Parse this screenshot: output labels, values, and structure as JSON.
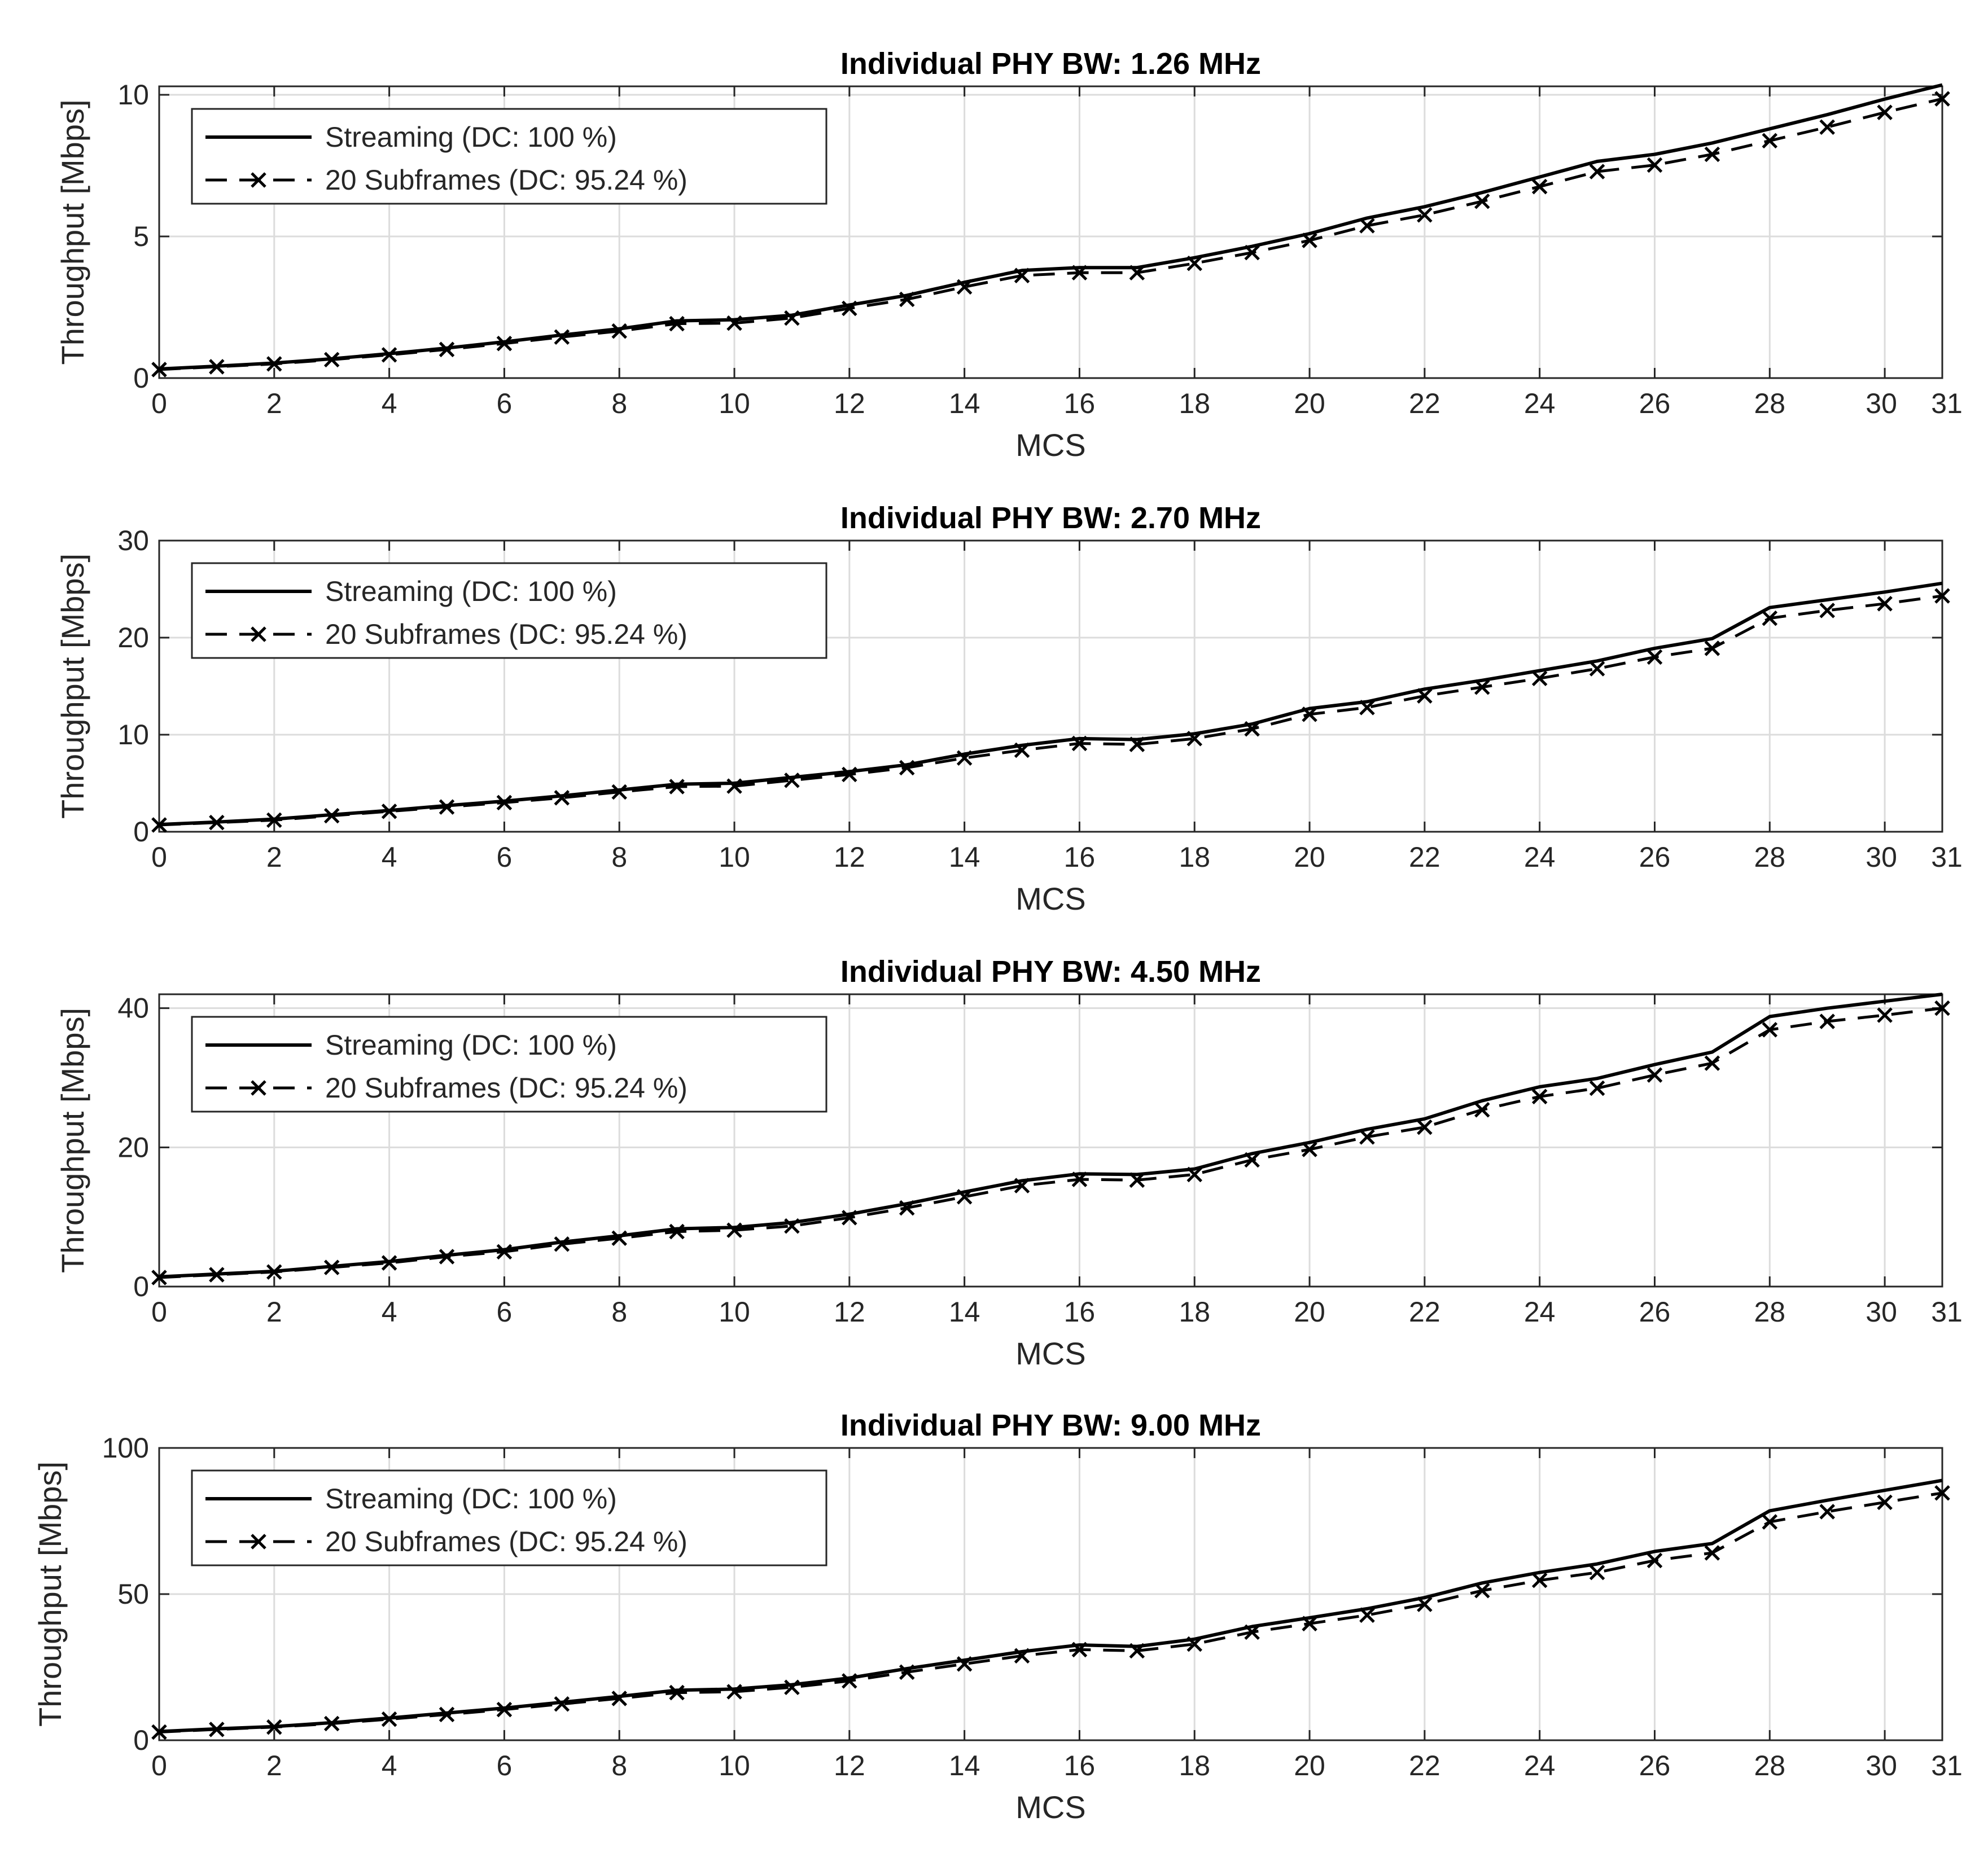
{
  "chart_data": [
    {
      "type": "line",
      "title": "Individual PHY BW: 1.26 MHz",
      "xlabel": "MCS",
      "ylabel": "Throughput [Mbps]",
      "xlim": [
        0,
        31
      ],
      "ylim": [
        0,
        10.3
      ],
      "xticks": [
        0,
        2,
        4,
        6,
        8,
        10,
        12,
        14,
        16,
        18,
        20,
        22,
        24,
        26,
        28,
        30,
        31
      ],
      "yticks": [
        0,
        5,
        10
      ],
      "grid": true,
      "legend_position": "top-left",
      "x": [
        0,
        1,
        2,
        3,
        4,
        5,
        6,
        7,
        8,
        9,
        10,
        11,
        12,
        13,
        14,
        15,
        16,
        17,
        18,
        19,
        20,
        21,
        22,
        23,
        24,
        25,
        26,
        27,
        28,
        29,
        30,
        31
      ],
      "series": [
        {
          "name": "Streaming (DC: 100 %)",
          "style": "solid",
          "values": [
            0.32,
            0.42,
            0.53,
            0.68,
            0.86,
            1.06,
            1.28,
            1.52,
            1.74,
            2.02,
            2.06,
            2.22,
            2.58,
            2.92,
            3.38,
            3.8,
            3.9,
            3.9,
            4.25,
            4.65,
            5.1,
            5.65,
            6.05,
            6.55,
            7.1,
            7.65,
            7.9,
            8.3,
            8.8,
            9.3,
            9.85,
            10.35
          ]
        },
        {
          "name": "20 Subframes (DC: 95.24 %)",
          "style": "dashed-x",
          "values": [
            0.3,
            0.4,
            0.5,
            0.65,
            0.82,
            1.01,
            1.22,
            1.45,
            1.66,
            1.92,
            1.94,
            2.12,
            2.46,
            2.78,
            3.22,
            3.62,
            3.72,
            3.72,
            4.05,
            4.43,
            4.86,
            5.38,
            5.76,
            6.24,
            6.76,
            7.29,
            7.52,
            7.9,
            8.38,
            8.86,
            9.38,
            9.86
          ]
        }
      ]
    },
    {
      "type": "line",
      "title": "Individual PHY BW: 2.70 MHz",
      "xlabel": "MCS",
      "ylabel": "Throughput [Mbps]",
      "xlim": [
        0,
        31
      ],
      "ylim": [
        0,
        30
      ],
      "xticks": [
        0,
        2,
        4,
        6,
        8,
        10,
        12,
        14,
        16,
        18,
        20,
        22,
        24,
        26,
        28,
        30,
        31
      ],
      "yticks": [
        0,
        10,
        20,
        30
      ],
      "grid": true,
      "legend_position": "top-left",
      "x": [
        0,
        1,
        2,
        3,
        4,
        5,
        6,
        7,
        8,
        9,
        10,
        11,
        12,
        13,
        14,
        15,
        16,
        17,
        18,
        19,
        20,
        21,
        22,
        23,
        24,
        25,
        26,
        27,
        28,
        29,
        30,
        31
      ],
      "series": [
        {
          "name": "Streaming (DC: 100 %)",
          "style": "solid",
          "values": [
            0.75,
            1.0,
            1.3,
            1.75,
            2.2,
            2.7,
            3.15,
            3.7,
            4.3,
            4.9,
            5.0,
            5.6,
            6.2,
            6.9,
            8.0,
            8.9,
            9.6,
            9.5,
            10.1,
            11.1,
            12.7,
            13.4,
            14.7,
            15.6,
            16.6,
            17.6,
            18.9,
            19.9,
            23.1,
            23.9,
            24.7,
            25.6
          ]
        },
        {
          "name": "20 Subframes (DC: 95.24 %)",
          "style": "dashed-x",
          "values": [
            0.7,
            0.95,
            1.2,
            1.65,
            2.1,
            2.55,
            3.0,
            3.5,
            4.1,
            4.65,
            4.7,
            5.3,
            5.9,
            6.6,
            7.6,
            8.4,
            9.1,
            9.0,
            9.6,
            10.6,
            12.1,
            12.8,
            14.0,
            14.9,
            15.8,
            16.8,
            18.0,
            18.9,
            22.0,
            22.8,
            23.5,
            24.3
          ]
        }
      ]
    },
    {
      "type": "line",
      "title": "Individual PHY BW: 4.50 MHz",
      "xlabel": "MCS",
      "ylabel": "Throughput [Mbps]",
      "xlim": [
        0,
        31
      ],
      "ylim": [
        0,
        42
      ],
      "xticks": [
        0,
        2,
        4,
        6,
        8,
        10,
        12,
        14,
        16,
        18,
        20,
        22,
        24,
        26,
        28,
        30,
        31
      ],
      "yticks": [
        0,
        20,
        40
      ],
      "grid": true,
      "legend_position": "top-left",
      "x": [
        0,
        1,
        2,
        3,
        4,
        5,
        6,
        7,
        8,
        9,
        10,
        11,
        12,
        13,
        14,
        15,
        16,
        17,
        18,
        19,
        20,
        21,
        22,
        23,
        24,
        25,
        26,
        27,
        28,
        29,
        30,
        31
      ],
      "series": [
        {
          "name": "Streaming (DC: 100 %)",
          "style": "solid",
          "values": [
            1.4,
            1.8,
            2.2,
            2.9,
            3.6,
            4.5,
            5.3,
            6.4,
            7.3,
            8.3,
            8.5,
            9.2,
            10.4,
            11.9,
            13.6,
            15.2,
            16.2,
            16.1,
            16.9,
            19.1,
            20.7,
            22.6,
            24.1,
            26.7,
            28.7,
            29.9,
            31.9,
            33.7,
            38.8,
            40.0,
            41.0,
            42.0
          ]
        },
        {
          "name": "20 Subframes (DC: 95.24 %)",
          "style": "dashed-x",
          "values": [
            1.3,
            1.7,
            2.1,
            2.75,
            3.4,
            4.3,
            5.0,
            6.1,
            6.95,
            7.9,
            8.1,
            8.7,
            9.9,
            11.3,
            12.9,
            14.5,
            15.4,
            15.3,
            16.1,
            18.2,
            19.7,
            21.5,
            22.9,
            25.4,
            27.3,
            28.5,
            30.4,
            32.1,
            36.9,
            38.1,
            39.0,
            40.0
          ]
        }
      ]
    },
    {
      "type": "line",
      "title": "Individual PHY BW: 9.00 MHz",
      "xlabel": "MCS",
      "ylabel": "Throughput [Mbps]",
      "xlim": [
        0,
        31
      ],
      "ylim": [
        0,
        100
      ],
      "xticks": [
        0,
        2,
        4,
        6,
        8,
        10,
        12,
        14,
        16,
        18,
        20,
        22,
        24,
        26,
        28,
        30,
        31
      ],
      "yticks": [
        0,
        50,
        100
      ],
      "grid": true,
      "legend_position": "top-left",
      "x": [
        0,
        1,
        2,
        3,
        4,
        5,
        6,
        7,
        8,
        9,
        10,
        11,
        12,
        13,
        14,
        15,
        16,
        17,
        18,
        19,
        20,
        21,
        22,
        23,
        24,
        25,
        26,
        27,
        28,
        29,
        30,
        31
      ],
      "series": [
        {
          "name": "Streaming (DC: 100 %)",
          "style": "solid",
          "values": [
            3.0,
            3.9,
            4.7,
            6.0,
            7.6,
            9.3,
            11.0,
            13.0,
            15.0,
            17.1,
            17.5,
            19.0,
            21.3,
            24.5,
            27.4,
            30.3,
            32.6,
            32.1,
            34.6,
            38.9,
            41.9,
            45.0,
            48.8,
            53.8,
            57.4,
            60.3,
            64.6,
            67.3,
            78.5,
            82.1,
            85.5,
            88.9
          ]
        },
        {
          "name": "20 Subframes (DC: 95.24 %)",
          "style": "dashed-x",
          "values": [
            2.8,
            3.7,
            4.5,
            5.7,
            7.2,
            8.8,
            10.5,
            12.4,
            14.3,
            16.3,
            16.6,
            18.1,
            20.3,
            23.3,
            26.1,
            28.9,
            31.0,
            30.6,
            32.9,
            37.0,
            39.9,
            42.8,
            46.5,
            51.2,
            54.7,
            57.4,
            61.5,
            64.1,
            74.7,
            78.2,
            81.4,
            84.6
          ]
        }
      ]
    }
  ]
}
